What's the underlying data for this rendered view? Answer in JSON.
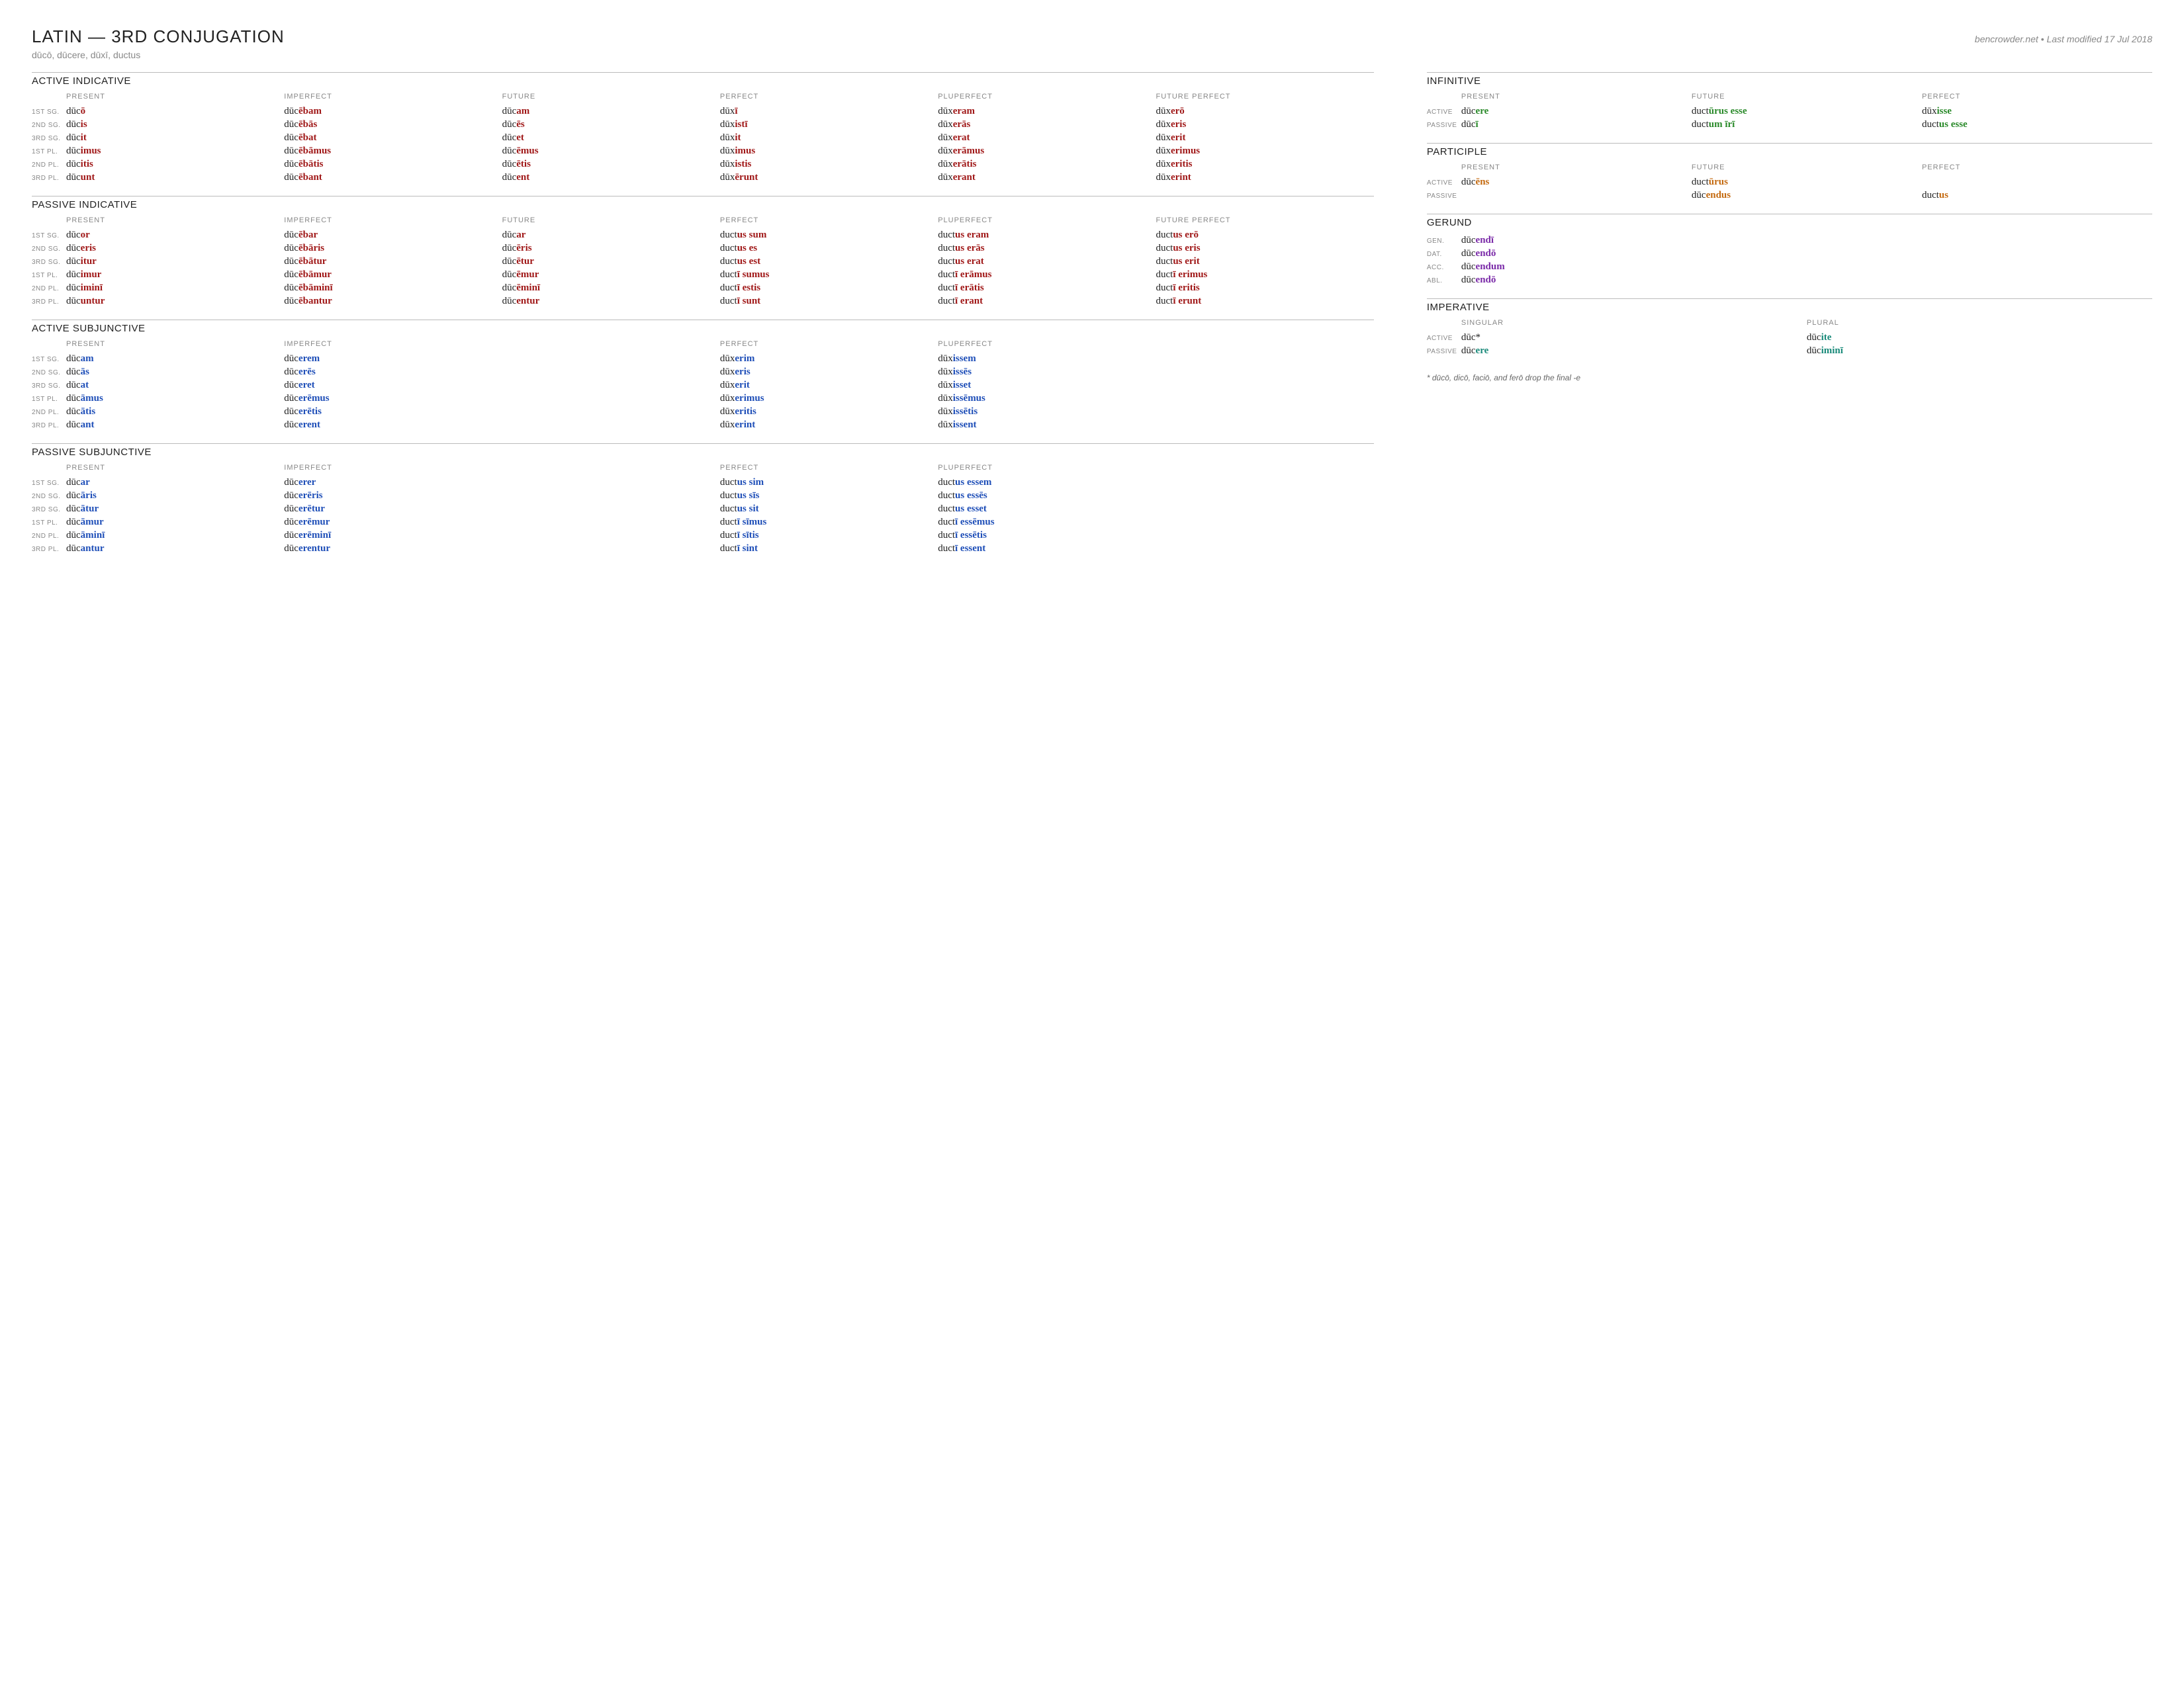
{
  "title": "LATIN — 3RD CONJUGATION",
  "meta": "bencrowder.net • Last modified 17 Jul 2018",
  "principal": "dūcō, dūcere, dūxī, ductus",
  "footnote": "* dūcō, dicō, faciō, and ferō drop the final -e",
  "rowLabels6": [
    "1ST SG.",
    "2ND SG.",
    "3RD SG.",
    "1ST PL.",
    "2ND PL.",
    "3RD PL."
  ],
  "activeIndicative": {
    "title": "ACTIVE INDICATIVE",
    "cols": [
      "PRESENT",
      "IMPERFECT",
      "FUTURE",
      "PERFECT",
      "PLUPERFECT",
      "FUTURE PERFECT"
    ],
    "sfxClass": "sfx-red",
    "rows": [
      [
        [
          "dūc",
          "ō"
        ],
        [
          "dūc",
          "ēbam"
        ],
        [
          "dūc",
          "am"
        ],
        [
          "dūx",
          "ī"
        ],
        [
          "dūx",
          "eram"
        ],
        [
          "dūx",
          "erō"
        ]
      ],
      [
        [
          "dūc",
          "is"
        ],
        [
          "dūc",
          "ēbās"
        ],
        [
          "dūc",
          "ēs"
        ],
        [
          "dūx",
          "istī"
        ],
        [
          "dūx",
          "erās"
        ],
        [
          "dūx",
          "eris"
        ]
      ],
      [
        [
          "dūc",
          "it"
        ],
        [
          "dūc",
          "ēbat"
        ],
        [
          "dūc",
          "et"
        ],
        [
          "dūx",
          "it"
        ],
        [
          "dūx",
          "erat"
        ],
        [
          "dūx",
          "erit"
        ]
      ],
      [
        [
          "dūc",
          "imus"
        ],
        [
          "dūc",
          "ēbāmus"
        ],
        [
          "dūc",
          "ēmus"
        ],
        [
          "dūx",
          "imus"
        ],
        [
          "dūx",
          "erāmus"
        ],
        [
          "dūx",
          "erimus"
        ]
      ],
      [
        [
          "dūc",
          "itis"
        ],
        [
          "dūc",
          "ēbātis"
        ],
        [
          "dūc",
          "ētis"
        ],
        [
          "dūx",
          "istis"
        ],
        [
          "dūx",
          "erātis"
        ],
        [
          "dūx",
          "eritis"
        ]
      ],
      [
        [
          "dūc",
          "unt"
        ],
        [
          "dūc",
          "ēbant"
        ],
        [
          "dūc",
          "ent"
        ],
        [
          "dūx",
          "ērunt"
        ],
        [
          "dūx",
          "erant"
        ],
        [
          "dūx",
          "erint"
        ]
      ]
    ]
  },
  "passiveIndicative": {
    "title": "PASSIVE INDICATIVE",
    "cols": [
      "PRESENT",
      "IMPERFECT",
      "FUTURE",
      "PERFECT",
      "PLUPERFECT",
      "FUTURE PERFECT"
    ],
    "sfxClass": "sfx-red",
    "rows": [
      [
        [
          "dūc",
          "or"
        ],
        [
          "dūc",
          "ēbar"
        ],
        [
          "dūc",
          "ar"
        ],
        [
          "duct",
          "us sum"
        ],
        [
          "duct",
          "us eram"
        ],
        [
          "duct",
          "us erō"
        ]
      ],
      [
        [
          "dūc",
          "eris"
        ],
        [
          "dūc",
          "ēbāris"
        ],
        [
          "dūc",
          "ēris"
        ],
        [
          "duct",
          "us es"
        ],
        [
          "duct",
          "us erās"
        ],
        [
          "duct",
          "us eris"
        ]
      ],
      [
        [
          "dūc",
          "itur"
        ],
        [
          "dūc",
          "ēbātur"
        ],
        [
          "dūc",
          "ētur"
        ],
        [
          "duct",
          "us est"
        ],
        [
          "duct",
          "us erat"
        ],
        [
          "duct",
          "us erit"
        ]
      ],
      [
        [
          "dūc",
          "imur"
        ],
        [
          "dūc",
          "ēbāmur"
        ],
        [
          "dūc",
          "ēmur"
        ],
        [
          "duct",
          "ī sumus"
        ],
        [
          "duct",
          "ī erāmus"
        ],
        [
          "duct",
          "ī erimus"
        ]
      ],
      [
        [
          "dūc",
          "iminī"
        ],
        [
          "dūc",
          "ēbāminī"
        ],
        [
          "dūc",
          "ēminī"
        ],
        [
          "duct",
          "ī estis"
        ],
        [
          "duct",
          "ī erātis"
        ],
        [
          "duct",
          "ī eritis"
        ]
      ],
      [
        [
          "dūc",
          "untur"
        ],
        [
          "dūc",
          "ēbantur"
        ],
        [
          "dūc",
          "entur"
        ],
        [
          "duct",
          "ī sunt"
        ],
        [
          "duct",
          "ī erant"
        ],
        [
          "duct",
          "ī erunt"
        ]
      ]
    ]
  },
  "activeSubjunctive": {
    "title": "ACTIVE SUBJUNCTIVE",
    "cols": [
      "PRESENT",
      "IMPERFECT",
      "",
      "PERFECT",
      "PLUPERFECT",
      ""
    ],
    "sfxClass": "sfx-blue",
    "rows": [
      [
        [
          "dūc",
          "am"
        ],
        [
          "dūc",
          "erem"
        ],
        null,
        [
          "dūx",
          "erim"
        ],
        [
          "dūx",
          "issem"
        ],
        null
      ],
      [
        [
          "dūc",
          "ās"
        ],
        [
          "dūc",
          "erēs"
        ],
        null,
        [
          "dūx",
          "eris"
        ],
        [
          "dūx",
          "issēs"
        ],
        null
      ],
      [
        [
          "dūc",
          "at"
        ],
        [
          "dūc",
          "eret"
        ],
        null,
        [
          "dūx",
          "erit"
        ],
        [
          "dūx",
          "isset"
        ],
        null
      ],
      [
        [
          "dūc",
          "āmus"
        ],
        [
          "dūc",
          "erēmus"
        ],
        null,
        [
          "dūx",
          "erimus"
        ],
        [
          "dūx",
          "issēmus"
        ],
        null
      ],
      [
        [
          "dūc",
          "ātis"
        ],
        [
          "dūc",
          "erētis"
        ],
        null,
        [
          "dūx",
          "eritis"
        ],
        [
          "dūx",
          "issētis"
        ],
        null
      ],
      [
        [
          "dūc",
          "ant"
        ],
        [
          "dūc",
          "erent"
        ],
        null,
        [
          "dūx",
          "erint"
        ],
        [
          "dūx",
          "issent"
        ],
        null
      ]
    ]
  },
  "passiveSubjunctive": {
    "title": "PASSIVE SUBJUNCTIVE",
    "cols": [
      "PRESENT",
      "IMPERFECT",
      "",
      "PERFECT",
      "PLUPERFECT",
      ""
    ],
    "sfxClass": "sfx-blue",
    "rows": [
      [
        [
          "dūc",
          "ar"
        ],
        [
          "dūc",
          "erer"
        ],
        null,
        [
          "duct",
          "us sim"
        ],
        [
          "duct",
          "us essem"
        ],
        null
      ],
      [
        [
          "dūc",
          "āris"
        ],
        [
          "dūc",
          "erēris"
        ],
        null,
        [
          "duct",
          "us sīs"
        ],
        [
          "duct",
          "us essēs"
        ],
        null
      ],
      [
        [
          "dūc",
          "ātur"
        ],
        [
          "dūc",
          "erētur"
        ],
        null,
        [
          "duct",
          "us sit"
        ],
        [
          "duct",
          "us esset"
        ],
        null
      ],
      [
        [
          "dūc",
          "āmur"
        ],
        [
          "dūc",
          "erēmur"
        ],
        null,
        [
          "duct",
          "ī sīmus"
        ],
        [
          "duct",
          "ī essēmus"
        ],
        null
      ],
      [
        [
          "dūc",
          "āminī"
        ],
        [
          "dūc",
          "erēminī"
        ],
        null,
        [
          "duct",
          "ī sītis"
        ],
        [
          "duct",
          "ī essētis"
        ],
        null
      ],
      [
        [
          "dūc",
          "antur"
        ],
        [
          "dūc",
          "erentur"
        ],
        null,
        [
          "duct",
          "ī sint"
        ],
        [
          "duct",
          "ī essent"
        ],
        null
      ]
    ]
  },
  "infinitive": {
    "title": "INFINITIVE",
    "cols": [
      "PRESENT",
      "FUTURE",
      "PERFECT"
    ],
    "rowLabels": [
      "ACTIVE",
      "PASSIVE"
    ],
    "sfxClass": "sfx-green",
    "rows": [
      [
        [
          "dūc",
          "ere"
        ],
        [
          "duct",
          "ūrus esse"
        ],
        [
          "dūx",
          "isse"
        ]
      ],
      [
        [
          "dūc",
          "ī"
        ],
        [
          "duct",
          "um īrī"
        ],
        [
          "duct",
          "us esse"
        ]
      ]
    ]
  },
  "participle": {
    "title": "PARTICIPLE",
    "cols": [
      "PRESENT",
      "FUTURE",
      "PERFECT"
    ],
    "rowLabels": [
      "ACTIVE",
      "PASSIVE"
    ],
    "sfxClass": "sfx-orange",
    "rows": [
      [
        [
          "dūc",
          "ēns"
        ],
        [
          "duct",
          "ūrus"
        ],
        null
      ],
      [
        null,
        [
          "dūc",
          "endus"
        ],
        [
          "duct",
          "us"
        ]
      ]
    ]
  },
  "gerund": {
    "title": "GERUND",
    "rowLabels": [
      "GEN.",
      "DAT.",
      "ACC.",
      "ABL."
    ],
    "sfxClass": "sfx-purple",
    "rows": [
      [
        [
          "dūc",
          "endī"
        ]
      ],
      [
        [
          "dūc",
          "endō"
        ]
      ],
      [
        [
          "dūc",
          "endum"
        ]
      ],
      [
        [
          "dūc",
          "endō"
        ]
      ]
    ]
  },
  "imperative": {
    "title": "IMPERATIVE",
    "cols": [
      "SINGULAR",
      "PLURAL"
    ],
    "rowLabels": [
      "ACTIVE",
      "PASSIVE"
    ],
    "sfxClass": "sfx-teal",
    "rows": [
      [
        [
          "dūc",
          "*",
          "stem"
        ],
        [
          "dūc",
          "ite"
        ]
      ],
      [
        [
          "dūc",
          "ere"
        ],
        [
          "dūc",
          "iminī"
        ]
      ]
    ]
  }
}
